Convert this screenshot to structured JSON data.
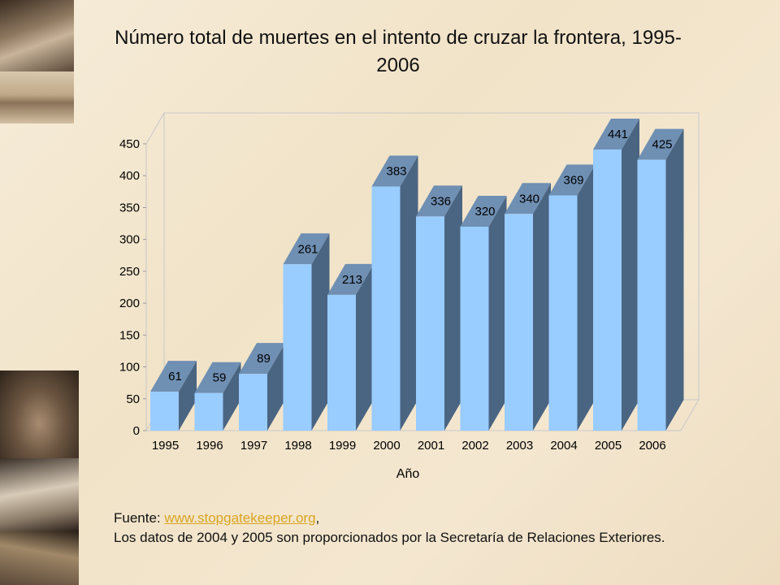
{
  "title": "Número total de muertes en el intento de cruzar la frontera, 1995-2006",
  "chart_data": {
    "type": "bar",
    "categories": [
      "1995",
      "1996",
      "1997",
      "1998",
      "1999",
      "2000",
      "2001",
      "2002",
      "2003",
      "2004",
      "2005",
      "2006"
    ],
    "values": [
      61,
      59,
      89,
      261,
      213,
      383,
      336,
      320,
      340,
      369,
      441,
      425
    ],
    "data_labels": [
      "61",
      "59",
      "89",
      "261",
      "213",
      "383",
      "336",
      "320",
      "340",
      "369",
      "441",
      "425"
    ],
    "xlabel": "Año",
    "ylabel": "",
    "ylim": [
      0,
      450
    ],
    "yticks": [
      0,
      50,
      100,
      150,
      200,
      250,
      300,
      350,
      400,
      450
    ],
    "style": "3d-column",
    "grid": false,
    "colors": {
      "front": "#99ccff",
      "side": "#4a6582",
      "top": "#6f8fb3"
    }
  },
  "source": {
    "prefix": "Fuente: ",
    "link_text": "www.stopgatekeeper.org",
    "suffix": ",",
    "note": "Los datos de 2004 y 2005 son proporcionados por la Secretaría de Relaciones Exteriores."
  },
  "decor": {
    "left_strip_images": [
      "photo-rowboat",
      "photo-desert-figures",
      "photo-child-portrait",
      "photo-angel-figure",
      "photo-dancer"
    ]
  }
}
